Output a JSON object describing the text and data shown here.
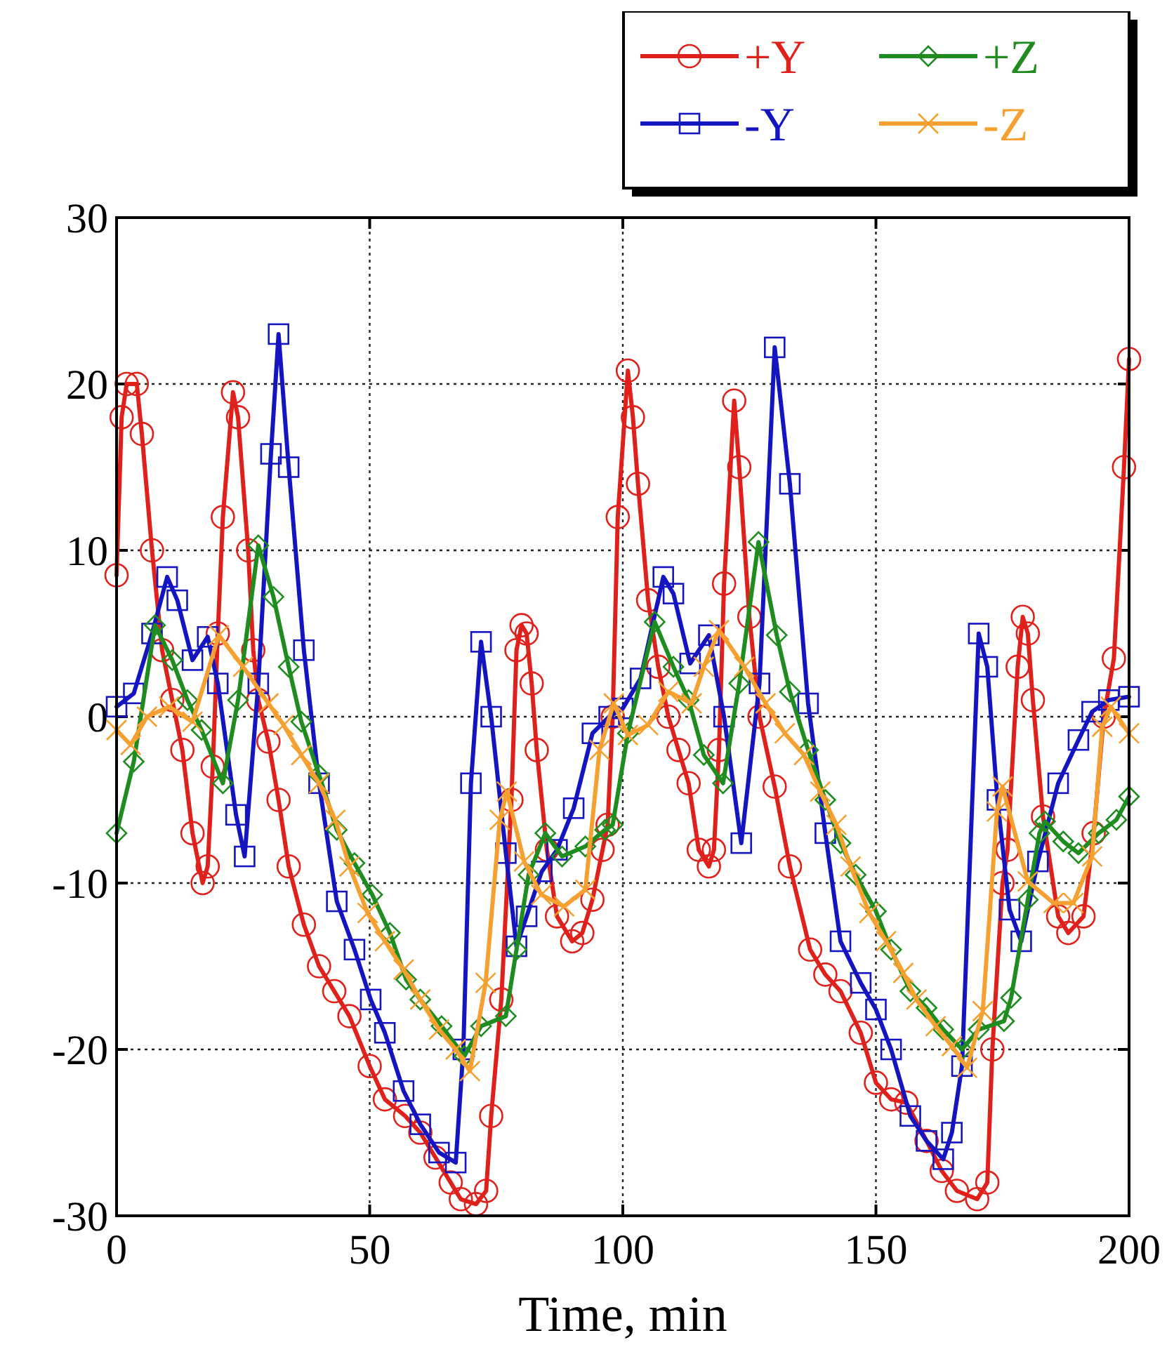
{
  "chart_data": {
    "type": "line",
    "xlabel": "Time, min",
    "xlim": [
      0,
      200
    ],
    "xticks": [
      0,
      50,
      100,
      150,
      200
    ],
    "ylim": [
      -30,
      30
    ],
    "yticks": [
      -30,
      -20,
      -10,
      0,
      10,
      20,
      30
    ],
    "grid": true,
    "legend": "top right",
    "line_style": "solid",
    "series": [
      {
        "name": "+Y",
        "color": "#e0201b",
        "marker": "circle",
        "x": [
          0,
          1,
          2,
          4,
          5,
          7,
          9,
          11,
          13,
          15,
          17,
          18,
          19,
          20,
          21,
          23,
          24,
          26,
          27,
          28,
          30,
          32,
          34,
          37,
          40,
          43,
          46,
          50,
          53,
          57,
          60,
          63,
          66,
          68,
          71,
          73,
          74,
          76,
          78,
          79,
          80,
          81,
          82,
          83,
          85,
          87,
          90,
          92,
          94,
          96,
          97,
          98,
          99,
          101,
          102,
          103,
          105,
          107,
          109,
          111,
          113,
          115,
          117,
          118,
          119,
          120,
          122,
          123,
          125,
          127,
          130,
          133,
          137,
          140,
          143,
          147,
          150,
          153,
          156,
          160,
          163,
          166,
          170,
          172,
          173,
          175,
          176,
          178,
          179,
          180,
          181,
          183,
          186,
          188,
          191,
          193,
          195,
          197,
          199,
          200
        ],
        "values": [
          8.5,
          18,
          20,
          20,
          17,
          10,
          4,
          1,
          -2,
          -7,
          -10,
          -9,
          -3,
          5,
          12,
          19.5,
          18,
          10,
          4,
          1,
          -1.5,
          -5,
          -9,
          -12.5,
          -15,
          -16.5,
          -18,
          -21,
          -23,
          -24,
          -25,
          -26.5,
          -28,
          -29,
          -29.3,
          -28.5,
          -24,
          -17,
          -5,
          4,
          5.5,
          5,
          2,
          -2,
          -8,
          -12,
          -13.5,
          -13,
          -11,
          -8,
          -6.5,
          0,
          12,
          20.8,
          18,
          14,
          7,
          3,
          0,
          -2,
          -4,
          -8,
          -9,
          -8,
          -2,
          8,
          19,
          15,
          6,
          0,
          -4.2,
          -9,
          -14,
          -15.5,
          -16.5,
          -19,
          -22,
          -23,
          -23.2,
          -25.5,
          -27.3,
          -28.5,
          -29,
          -28,
          -20,
          -10,
          -8,
          3,
          6,
          5,
          1,
          -6,
          -12,
          -13,
          -12,
          -7,
          0,
          3.5,
          15,
          21.5
        ]
      },
      {
        "name": "-Y",
        "color": "#1414c0",
        "marker": "square",
        "x": [
          0,
          3.4,
          7,
          10,
          12,
          15,
          18,
          20,
          23.6,
          25.3,
          28,
          30.5,
          32,
          34,
          37,
          40,
          43.5,
          47,
          50.2,
          53,
          56.7,
          60,
          63.7,
          67,
          68.5,
          70,
          72,
          74,
          76.9,
          79,
          81,
          84,
          87,
          90.3,
          94,
          97.3,
          100,
          103.5,
          108,
          110,
          113.3,
          117,
          120,
          123.4,
          127,
          130,
          133,
          136.6,
          140,
          143,
          147,
          150,
          153,
          156.8,
          160,
          163.3,
          165,
          167,
          170.3,
          172,
          174,
          176.4,
          178.7,
          182,
          186,
          190,
          192.7,
          196,
          200
        ],
        "values": [
          0.6,
          1.4,
          5,
          8.4,
          7,
          3.4,
          4.8,
          2,
          -5.9,
          -8.4,
          2,
          15.8,
          23,
          15,
          4,
          -4,
          -11.1,
          -14,
          -17,
          -19,
          -22.5,
          -24.5,
          -26.2,
          -26.8,
          -20,
          -4,
          4.5,
          0,
          -8.2,
          -13.8,
          -12,
          -9.3,
          -8,
          -5.5,
          -1,
          0,
          0.5,
          2.3,
          8.4,
          7.4,
          3.2,
          4.9,
          0,
          -7.6,
          2,
          22.2,
          14,
          0.8,
          -7,
          -13.5,
          -16,
          -17.6,
          -20,
          -24,
          -25.5,
          -26.6,
          -25,
          -21,
          5,
          3,
          -5,
          -11.6,
          -13.5,
          -8.7,
          -4,
          -1.4,
          0.3,
          1,
          1.2
        ]
      },
      {
        "name": "+Z",
        "color": "#1e8c1e",
        "marker": "diamond",
        "x": [
          0,
          3.4,
          7.6,
          11,
          14,
          16.8,
          21,
          24,
          28,
          31,
          34,
          36.5,
          40,
          43.5,
          47,
          50.5,
          54,
          57.2,
          60,
          64.2,
          68.7,
          72,
          76.9,
          79,
          81.4,
          84.7,
          88,
          92.6,
          96.5,
          98,
          101,
          106.3,
          110,
          113,
          116,
          119.8,
          123,
          126.8,
          130.4,
          133,
          136.6,
          140,
          143,
          146,
          150,
          153,
          156.8,
          160,
          163.3,
          167,
          170.3,
          175.3,
          176.7,
          180,
          182.3,
          183.4,
          187,
          190,
          194,
          197.5,
          200
        ],
        "values": [
          -7,
          -2.7,
          5.5,
          3.4,
          1,
          -0.8,
          -4,
          1,
          10.3,
          7.2,
          3,
          -0.3,
          -3.5,
          -6.8,
          -8.8,
          -10.7,
          -13,
          -15.8,
          -17,
          -18.6,
          -20.4,
          -18.6,
          -18,
          -14,
          -9.5,
          -7,
          -8.4,
          -7.8,
          -6.8,
          -6.5,
          -1,
          5.7,
          3,
          1,
          -2.3,
          -4,
          2,
          10.5,
          4.9,
          1.5,
          -2,
          -5,
          -7.6,
          -9.5,
          -11.7,
          -14,
          -16.5,
          -17.5,
          -18.8,
          -20,
          -18.8,
          -18.3,
          -16.9,
          -11,
          -7,
          -6.3,
          -7.5,
          -8.2,
          -7,
          -6.2,
          -4.8
        ]
      },
      {
        "name": "-Z",
        "color": "#f5a030",
        "marker": "cross",
        "x": [
          0,
          2.8,
          6,
          10.4,
          15,
          20.2,
          25,
          30,
          33,
          36.5,
          40,
          43.2,
          46,
          49.6,
          53,
          56.7,
          60,
          63.7,
          67,
          69.8,
          72.9,
          75.7,
          77.1,
          80.5,
          83.9,
          88.4,
          92.6,
          95.4,
          98.2,
          101,
          105,
          109,
          113.6,
          116,
          119,
          124,
          128.2,
          132,
          135.8,
          139,
          142.2,
          145,
          148.7,
          152,
          155.4,
          158,
          161.8,
          165,
          168,
          171.1,
          173.9,
          175,
          180,
          185.1,
          189,
          192.7,
          194.7,
          196.4,
          200
        ],
        "values": [
          -0.8,
          -1.7,
          0,
          0.6,
          -0.3,
          4.9,
          3,
          0.8,
          -0.5,
          -2.3,
          -4,
          -6.2,
          -9,
          -11.8,
          -13.5,
          -15.2,
          -17,
          -18.8,
          -20,
          -21.3,
          -16,
          -6.2,
          -4.5,
          -8.7,
          -10.7,
          -11.4,
          -10.4,
          -2,
          0.8,
          -1.1,
          -0.5,
          1.5,
          0.8,
          3,
          5.2,
          3,
          0.8,
          -1,
          -2.3,
          -4.5,
          -6.5,
          -9,
          -11.8,
          -13.5,
          -15.4,
          -17,
          -18.6,
          -19.8,
          -21.1,
          -17.7,
          -5.7,
          -4.2,
          -9.9,
          -11.2,
          -11.2,
          -8.4,
          -0.6,
          0.6,
          -1
        ]
      }
    ]
  }
}
